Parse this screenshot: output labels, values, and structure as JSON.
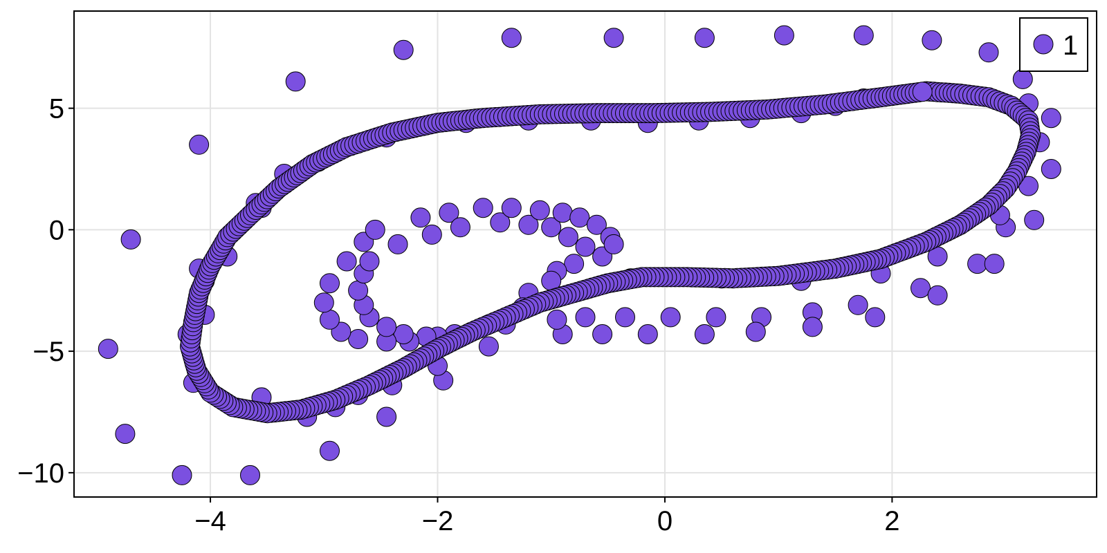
{
  "chart_data": {
    "type": "scatter",
    "title": "",
    "xlabel": "",
    "ylabel": "",
    "xlim": [
      -5.2,
      3.8
    ],
    "ylim": [
      -11.0,
      9.0
    ],
    "x_ticks": [
      -4,
      -2,
      0,
      2
    ],
    "x_tick_labels": [
      "−4",
      "−2",
      "0",
      "2"
    ],
    "y_ticks": [
      -10,
      -5,
      0,
      5
    ],
    "y_tick_labels": [
      "−10",
      "−5",
      "0",
      "5"
    ],
    "grid": true,
    "legend": {
      "position": "top-right",
      "entries": [
        "1"
      ]
    },
    "series": [
      {
        "name": "1",
        "color": "#7b50e0",
        "edge_color": "#000000",
        "points": [
          [
            -4.9,
            -4.9
          ],
          [
            -4.75,
            -8.4
          ],
          [
            -4.7,
            -0.4
          ],
          [
            -4.25,
            -10.1
          ],
          [
            -3.65,
            -10.1
          ],
          [
            -2.95,
            -9.1
          ],
          [
            -2.45,
            -7.7
          ],
          [
            -1.95,
            -6.2
          ],
          [
            -4.1,
            3.5
          ],
          [
            -3.25,
            6.1
          ],
          [
            -2.3,
            7.4
          ],
          [
            -1.35,
            7.9
          ],
          [
            -0.45,
            7.9
          ],
          [
            0.35,
            7.9
          ],
          [
            1.05,
            8.0
          ],
          [
            1.75,
            8.0
          ],
          [
            2.35,
            7.8
          ],
          [
            2.85,
            7.3
          ],
          [
            3.15,
            6.2
          ],
          [
            3.2,
            5.2
          ],
          [
            3.4,
            4.6
          ],
          [
            3.3,
            3.6
          ],
          [
            3.4,
            2.5
          ],
          [
            3.2,
            1.8
          ],
          [
            3.25,
            0.4
          ],
          [
            3.0,
            0.1
          ],
          [
            2.75,
            -1.4
          ],
          [
            2.9,
            -1.4
          ],
          [
            2.25,
            -2.4
          ],
          [
            2.4,
            -2.7
          ],
          [
            1.7,
            -3.1
          ],
          [
            1.85,
            -3.6
          ],
          [
            1.3,
            -3.4
          ],
          [
            1.3,
            -4.0
          ],
          [
            0.85,
            -3.6
          ],
          [
            0.8,
            -4.2
          ],
          [
            0.45,
            -3.6
          ],
          [
            0.35,
            -4.3
          ],
          [
            0.05,
            -3.6
          ],
          [
            -0.15,
            -4.3
          ],
          [
            -0.35,
            -3.6
          ],
          [
            -0.55,
            -4.3
          ],
          [
            -0.7,
            -3.6
          ],
          [
            -0.9,
            -4.3
          ],
          [
            -0.95,
            -3.7
          ],
          [
            -2.65,
            -0.5
          ],
          [
            -2.55,
            0.0
          ],
          [
            -2.35,
            -0.6
          ],
          [
            -2.15,
            0.5
          ],
          [
            -2.05,
            -0.2
          ],
          [
            -1.9,
            0.7
          ],
          [
            -1.8,
            0.1
          ],
          [
            -1.6,
            0.9
          ],
          [
            -1.45,
            0.3
          ],
          [
            -1.35,
            0.9
          ],
          [
            -1.2,
            0.2
          ],
          [
            -1.1,
            0.8
          ],
          [
            -1.0,
            0.1
          ],
          [
            -0.9,
            0.7
          ],
          [
            -0.85,
            -0.3
          ],
          [
            -0.75,
            0.5
          ],
          [
            -0.7,
            -0.7
          ],
          [
            -0.6,
            0.2
          ],
          [
            -0.55,
            -1.1
          ],
          [
            -0.48,
            -0.3
          ],
          [
            -0.45,
            -0.6
          ],
          [
            -0.8,
            -1.4
          ],
          [
            -0.95,
            -1.7
          ],
          [
            -1.0,
            -2.1
          ],
          [
            -1.2,
            -2.6
          ],
          [
            -1.25,
            -3.2
          ],
          [
            -1.55,
            -3.9
          ],
          [
            -1.55,
            -4.8
          ],
          [
            -1.85,
            -4.3
          ],
          [
            -2.0,
            -4.4
          ],
          [
            -2.1,
            -4.4
          ],
          [
            -2.25,
            -4.6
          ],
          [
            -2.3,
            -4.3
          ],
          [
            -2.45,
            -4.6
          ],
          [
            -2.45,
            -4.0
          ],
          [
            -2.7,
            -4.5
          ],
          [
            -2.85,
            -4.2
          ],
          [
            -2.6,
            -3.6
          ],
          [
            -2.65,
            -3.1
          ],
          [
            -2.95,
            -3.7
          ],
          [
            -3.0,
            -3.0
          ],
          [
            -2.7,
            -2.5
          ],
          [
            -2.65,
            -1.8
          ],
          [
            -2.95,
            -2.2
          ],
          [
            -2.6,
            -1.3
          ],
          [
            -2.8,
            -1.3
          ],
          [
            -4.2,
            -4.3
          ],
          [
            -4.15,
            -6.3
          ],
          [
            -3.55,
            -6.9
          ],
          [
            -3.15,
            -7.7
          ],
          [
            -2.7,
            -6.8
          ],
          [
            -2.4,
            -6.4
          ],
          [
            -4.1,
            -1.6
          ],
          [
            -4.05,
            -2.1
          ],
          [
            -4.05,
            -3.5
          ],
          [
            -3.55,
            0.9
          ],
          [
            -3.35,
            2.3
          ],
          [
            -3.05,
            2.8
          ],
          [
            -2.45,
            3.8
          ],
          [
            -1.75,
            4.4
          ],
          [
            -1.2,
            4.5
          ],
          [
            -0.65,
            4.5
          ],
          [
            -0.15,
            4.4
          ],
          [
            0.3,
            4.5
          ],
          [
            0.75,
            4.6
          ],
          [
            1.2,
            4.8
          ],
          [
            1.5,
            5.1
          ],
          [
            1.75,
            5.4
          ],
          [
            -3.85,
            -1.1
          ],
          [
            -3.6,
            1.1
          ],
          [
            -2.9,
            -7.3
          ],
          [
            -2.0,
            -5.6
          ],
          [
            -1.4,
            -3.9
          ],
          [
            -0.95,
            -2.8
          ],
          [
            -0.3,
            -2.0
          ],
          [
            0.5,
            -2.0
          ],
          [
            1.2,
            -2.1
          ],
          [
            1.9,
            -1.8
          ],
          [
            2.4,
            -1.1
          ],
          [
            2.95,
            0.6
          ]
        ],
        "curve": [
          [
            2.3,
            5.7
          ],
          [
            2.6,
            5.6
          ],
          [
            2.85,
            5.45
          ],
          [
            3.05,
            5.1
          ],
          [
            3.2,
            4.5
          ],
          [
            3.22,
            3.9
          ],
          [
            3.18,
            3.2
          ],
          [
            3.1,
            2.4
          ],
          [
            3.0,
            1.7
          ],
          [
            2.85,
            1.0
          ],
          [
            2.6,
            0.2
          ],
          [
            2.3,
            -0.5
          ],
          [
            1.9,
            -1.2
          ],
          [
            1.5,
            -1.6
          ],
          [
            1.0,
            -1.9
          ],
          [
            0.6,
            -2.0
          ],
          [
            0.2,
            -1.95
          ],
          [
            -0.2,
            -1.95
          ],
          [
            -0.5,
            -2.2
          ],
          [
            -0.8,
            -2.6
          ],
          [
            -1.1,
            -3.0
          ],
          [
            -1.4,
            -3.6
          ],
          [
            -1.7,
            -4.2
          ],
          [
            -2.0,
            -4.9
          ],
          [
            -2.3,
            -5.7
          ],
          [
            -2.6,
            -6.4
          ],
          [
            -2.9,
            -7.0
          ],
          [
            -3.2,
            -7.4
          ],
          [
            -3.5,
            -7.55
          ],
          [
            -3.8,
            -7.3
          ],
          [
            -4.0,
            -6.7
          ],
          [
            -4.12,
            -5.8
          ],
          [
            -4.18,
            -4.8
          ],
          [
            -4.15,
            -3.8
          ],
          [
            -4.1,
            -2.6
          ],
          [
            -4.0,
            -1.5
          ],
          [
            -3.85,
            -0.3
          ],
          [
            -3.65,
            0.6
          ],
          [
            -3.4,
            1.7
          ],
          [
            -3.1,
            2.7
          ],
          [
            -2.8,
            3.4
          ],
          [
            -2.4,
            4.0
          ],
          [
            -2.0,
            4.4
          ],
          [
            -1.6,
            4.6
          ],
          [
            -1.1,
            4.75
          ],
          [
            -0.6,
            4.8
          ],
          [
            -0.1,
            4.8
          ],
          [
            0.4,
            4.85
          ],
          [
            0.9,
            4.95
          ],
          [
            1.4,
            5.15
          ],
          [
            1.9,
            5.45
          ],
          [
            2.3,
            5.7
          ]
        ]
      }
    ]
  }
}
